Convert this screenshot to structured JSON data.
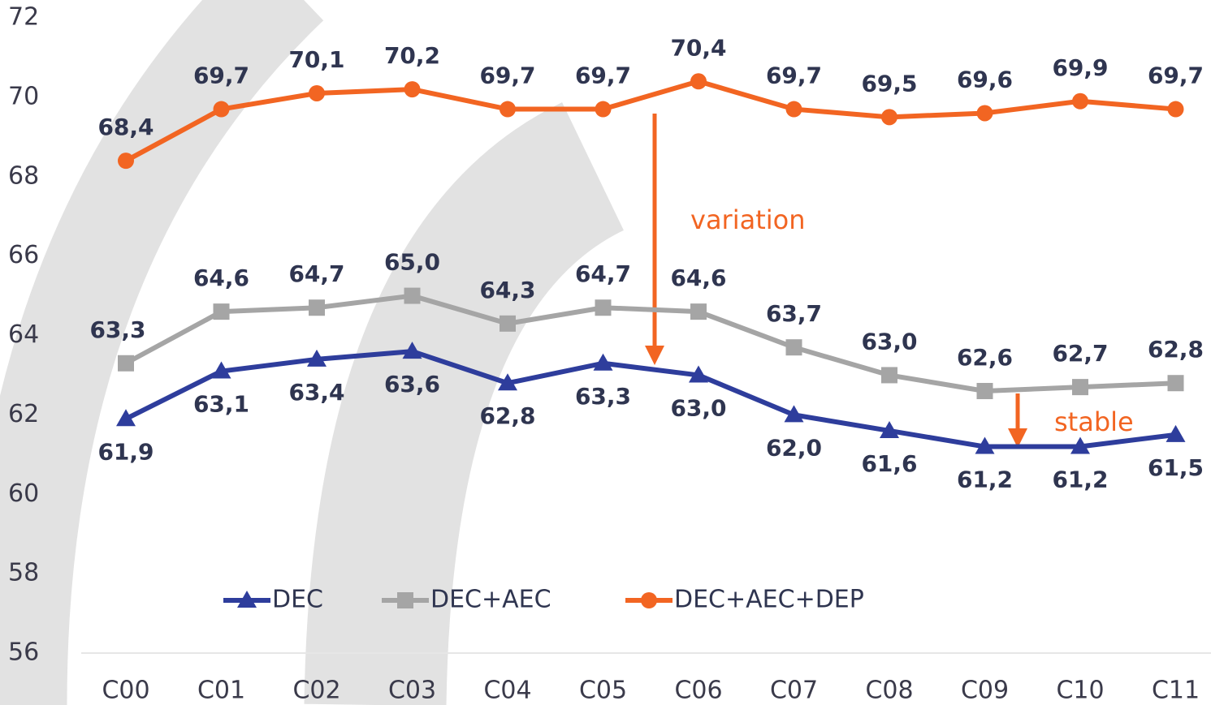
{
  "chart_data": {
    "type": "line",
    "categories": [
      "C00",
      "C01",
      "C02",
      "C03",
      "C04",
      "C05",
      "C06",
      "C07",
      "C08",
      "C09",
      "C10",
      "C11"
    ],
    "series": [
      {
        "name": "DEC",
        "color": "#2e3d9c",
        "marker": "triangle",
        "values": [
          61.9,
          63.1,
          63.4,
          63.6,
          62.8,
          63.3,
          63.0,
          62.0,
          61.6,
          61.2,
          61.2,
          61.5
        ],
        "value_labels": [
          "61,9",
          "63,1",
          "63,4",
          "63,6",
          "62,8",
          "63,3",
          "63,0",
          "62,0",
          "61,6",
          "61,2",
          "61,2",
          "61,5"
        ]
      },
      {
        "name": "DEC+AEC",
        "color": "#a5a5a5",
        "marker": "square",
        "values": [
          63.3,
          64.6,
          64.7,
          65.0,
          64.3,
          64.7,
          64.6,
          63.7,
          63.0,
          62.6,
          62.7,
          62.8
        ],
        "value_labels": [
          "63,3",
          "64,6",
          "64,7",
          "65,0",
          "64,3",
          "64,7",
          "64,6",
          "63,7",
          "63,0",
          "62,6",
          "62,7",
          "62,8"
        ]
      },
      {
        "name": "DEC+AEC+DEP",
        "color": "#f26522",
        "marker": "circle",
        "values": [
          68.4,
          69.7,
          70.1,
          70.2,
          69.7,
          69.7,
          70.4,
          69.7,
          69.5,
          69.6,
          69.9,
          69.7
        ],
        "value_labels": [
          "68,4",
          "69,7",
          "70,1",
          "70,2",
          "69,7",
          "69,7",
          "70,4",
          "69,7",
          "69,5",
          "69,6",
          "69,9",
          "69,7"
        ]
      }
    ],
    "ylim": [
      56,
      72
    ],
    "yticks": [
      56,
      58,
      60,
      62,
      64,
      66,
      68,
      70,
      72
    ],
    "grid": false,
    "legend": "bottom",
    "annotations": [
      "variation",
      "stable"
    ]
  }
}
